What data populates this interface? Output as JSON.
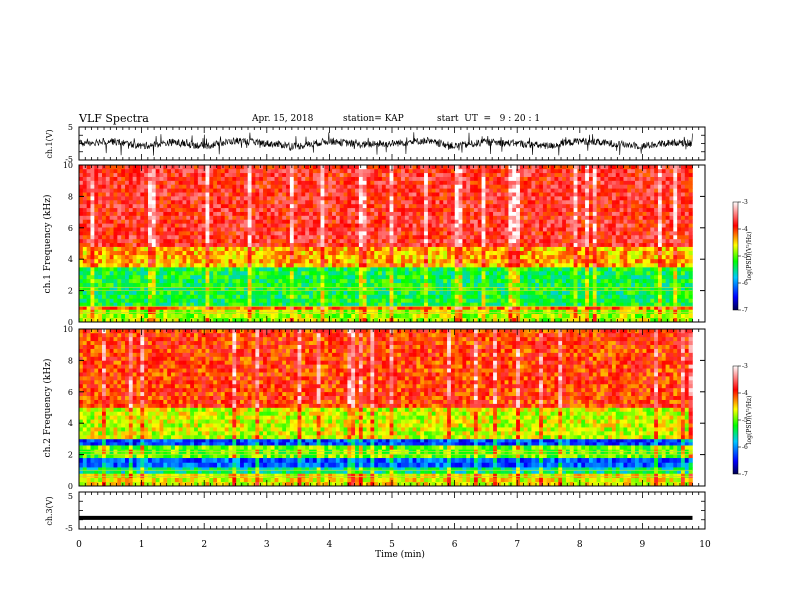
{
  "header": {
    "title": "VLF Spectra",
    "date": "Apr. 15, 2018",
    "station": "station= KAP",
    "start": "start  UT  =   9 : 20 : 1"
  },
  "colors": {
    "spectrogram_low": "#000080",
    "spectrogram_mid": "#00ff00",
    "spectrogram_high": "#ff0000",
    "trace": "#000000"
  },
  "chart_data": [
    {
      "type": "line",
      "panel": "ch1-waveform",
      "ylabel": "ch.1(V)",
      "yticks": [
        "5",
        "-5"
      ],
      "ylim": [
        -5,
        5
      ],
      "xlim": [
        0,
        10
      ],
      "description_series": "noisy voltage trace spanning roughly -3 V to +3 V over 0–9.8 min",
      "x": [
        0,
        0.5,
        1,
        1.5,
        2,
        2.5,
        3,
        3.5,
        4,
        4.5,
        5,
        5.5,
        6,
        6.5,
        7,
        7.5,
        8,
        8.5,
        9,
        9.5,
        9.8
      ],
      "y": [
        0,
        1,
        -1,
        0.5,
        -1,
        1,
        0,
        -1,
        1,
        -0.5,
        0,
        1,
        -1,
        0.5,
        0,
        -1,
        1,
        0,
        -1,
        0.5,
        0
      ]
    },
    {
      "type": "heatmap",
      "panel": "ch1-spectrogram",
      "ylabel": "ch.1 Frequency (kHz)",
      "yticks": [
        "0",
        "2",
        "4",
        "6",
        "8",
        "10"
      ],
      "ylim": [
        0,
        10
      ],
      "xlim": [
        0,
        9.8
      ],
      "colorbar": {
        "label": "log(PSD)(V²/Hz)",
        "ticks": [
          "-3",
          "-4",
          "-5",
          "-6",
          "-7"
        ],
        "range": [
          -7,
          -3
        ]
      },
      "bands": [
        {
          "f_low": 0,
          "f_high": 0.8,
          "log_psd": -4.8
        },
        {
          "f_low": 0.8,
          "f_high": 1.0,
          "log_psd": -4.2
        },
        {
          "f_low": 1.0,
          "f_high": 3.5,
          "log_psd": -5.3
        },
        {
          "f_low": 3.5,
          "f_high": 4.8,
          "log_psd": -4.4
        },
        {
          "f_low": 4.8,
          "f_high": 10,
          "log_psd": -3.8
        }
      ]
    },
    {
      "type": "heatmap",
      "panel": "ch2-spectrogram",
      "ylabel": "ch.2 Frequency (kHz)",
      "yticks": [
        "0",
        "2",
        "4",
        "6",
        "8",
        "10"
      ],
      "ylim": [
        0,
        10
      ],
      "xlim": [
        0,
        9.8
      ],
      "colorbar": {
        "label": "log(PSD)(V²/Hz)",
        "ticks": [
          "-3",
          "-4",
          "-5",
          "-6",
          "-7"
        ],
        "range": [
          -7,
          -3
        ]
      },
      "bands": [
        {
          "f_low": 0,
          "f_high": 0.8,
          "log_psd": -4.6
        },
        {
          "f_low": 0.8,
          "f_high": 1.2,
          "log_psd": -5.5
        },
        {
          "f_low": 1.2,
          "f_high": 1.8,
          "log_psd": -6.2
        },
        {
          "f_low": 1.8,
          "f_high": 2.6,
          "log_psd": -5.0
        },
        {
          "f_low": 2.6,
          "f_high": 3.0,
          "log_psd": -6.3
        },
        {
          "f_low": 3.0,
          "f_high": 5.0,
          "log_psd": -4.7
        },
        {
          "f_low": 5.0,
          "f_high": 10,
          "log_psd": -4.0
        }
      ]
    },
    {
      "type": "line",
      "panel": "ch3-waveform",
      "ylabel": "ch.3(V)",
      "yticks": [
        "5",
        "-5"
      ],
      "ylim": [
        -5,
        5
      ],
      "xlim": [
        0,
        10
      ],
      "x": [
        0,
        9.8
      ],
      "y": [
        -2,
        -2
      ]
    }
  ],
  "xaxis": {
    "label": "Time  (min)",
    "ticks": [
      "0",
      "1",
      "2",
      "3",
      "4",
      "5",
      "6",
      "7",
      "8",
      "9",
      "10"
    ]
  }
}
